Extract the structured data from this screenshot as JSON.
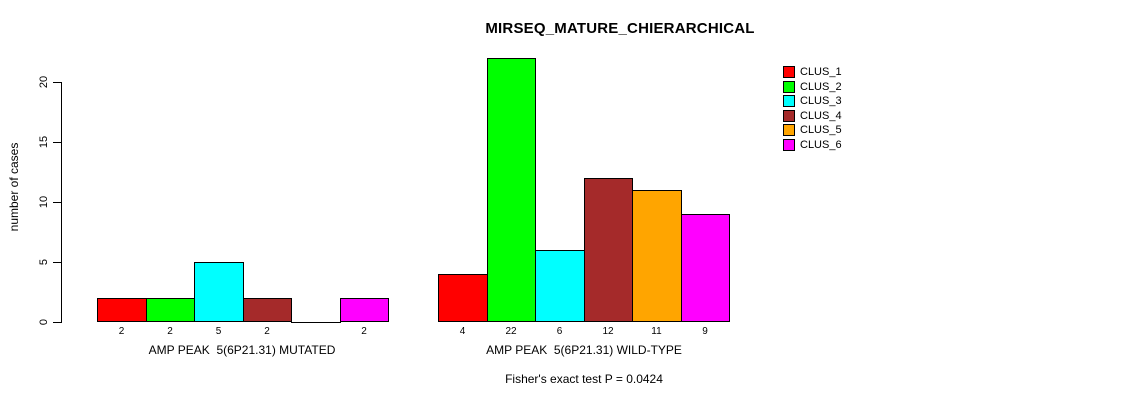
{
  "title": "MIRSEQ_MATURE_CHIERARCHICAL",
  "chart_data": {
    "type": "bar",
    "title": "MIRSEQ_MATURE_CHIERARCHICAL",
    "xlabel": "",
    "ylabel": "number of cases",
    "ylim": [
      0,
      22
    ],
    "yticks": [
      0,
      5,
      10,
      15,
      20
    ],
    "grid": false,
    "legend_position": "top-right",
    "bar_border_color": "#000000",
    "series": [
      {
        "name": "CLUS_1",
        "color": "#FF0000"
      },
      {
        "name": "CLUS_2",
        "color": "#00FF00"
      },
      {
        "name": "CLUS_3",
        "color": "#00FFFF"
      },
      {
        "name": "CLUS_4",
        "color": "#A52A2A"
      },
      {
        "name": "CLUS_5",
        "color": "#FFA500"
      },
      {
        "name": "CLUS_6",
        "color": "#FF00FF"
      }
    ],
    "groups": [
      {
        "label": "AMP PEAK  5(6P21.31) MUTATED",
        "values": [
          2,
          2,
          5,
          2,
          0,
          2
        ]
      },
      {
        "label": "AMP PEAK  5(6P21.31) WILD-TYPE",
        "values": [
          4,
          22,
          6,
          12,
          11,
          9
        ]
      }
    ],
    "annotation": "Fisher's exact test P = 0.0424"
  }
}
